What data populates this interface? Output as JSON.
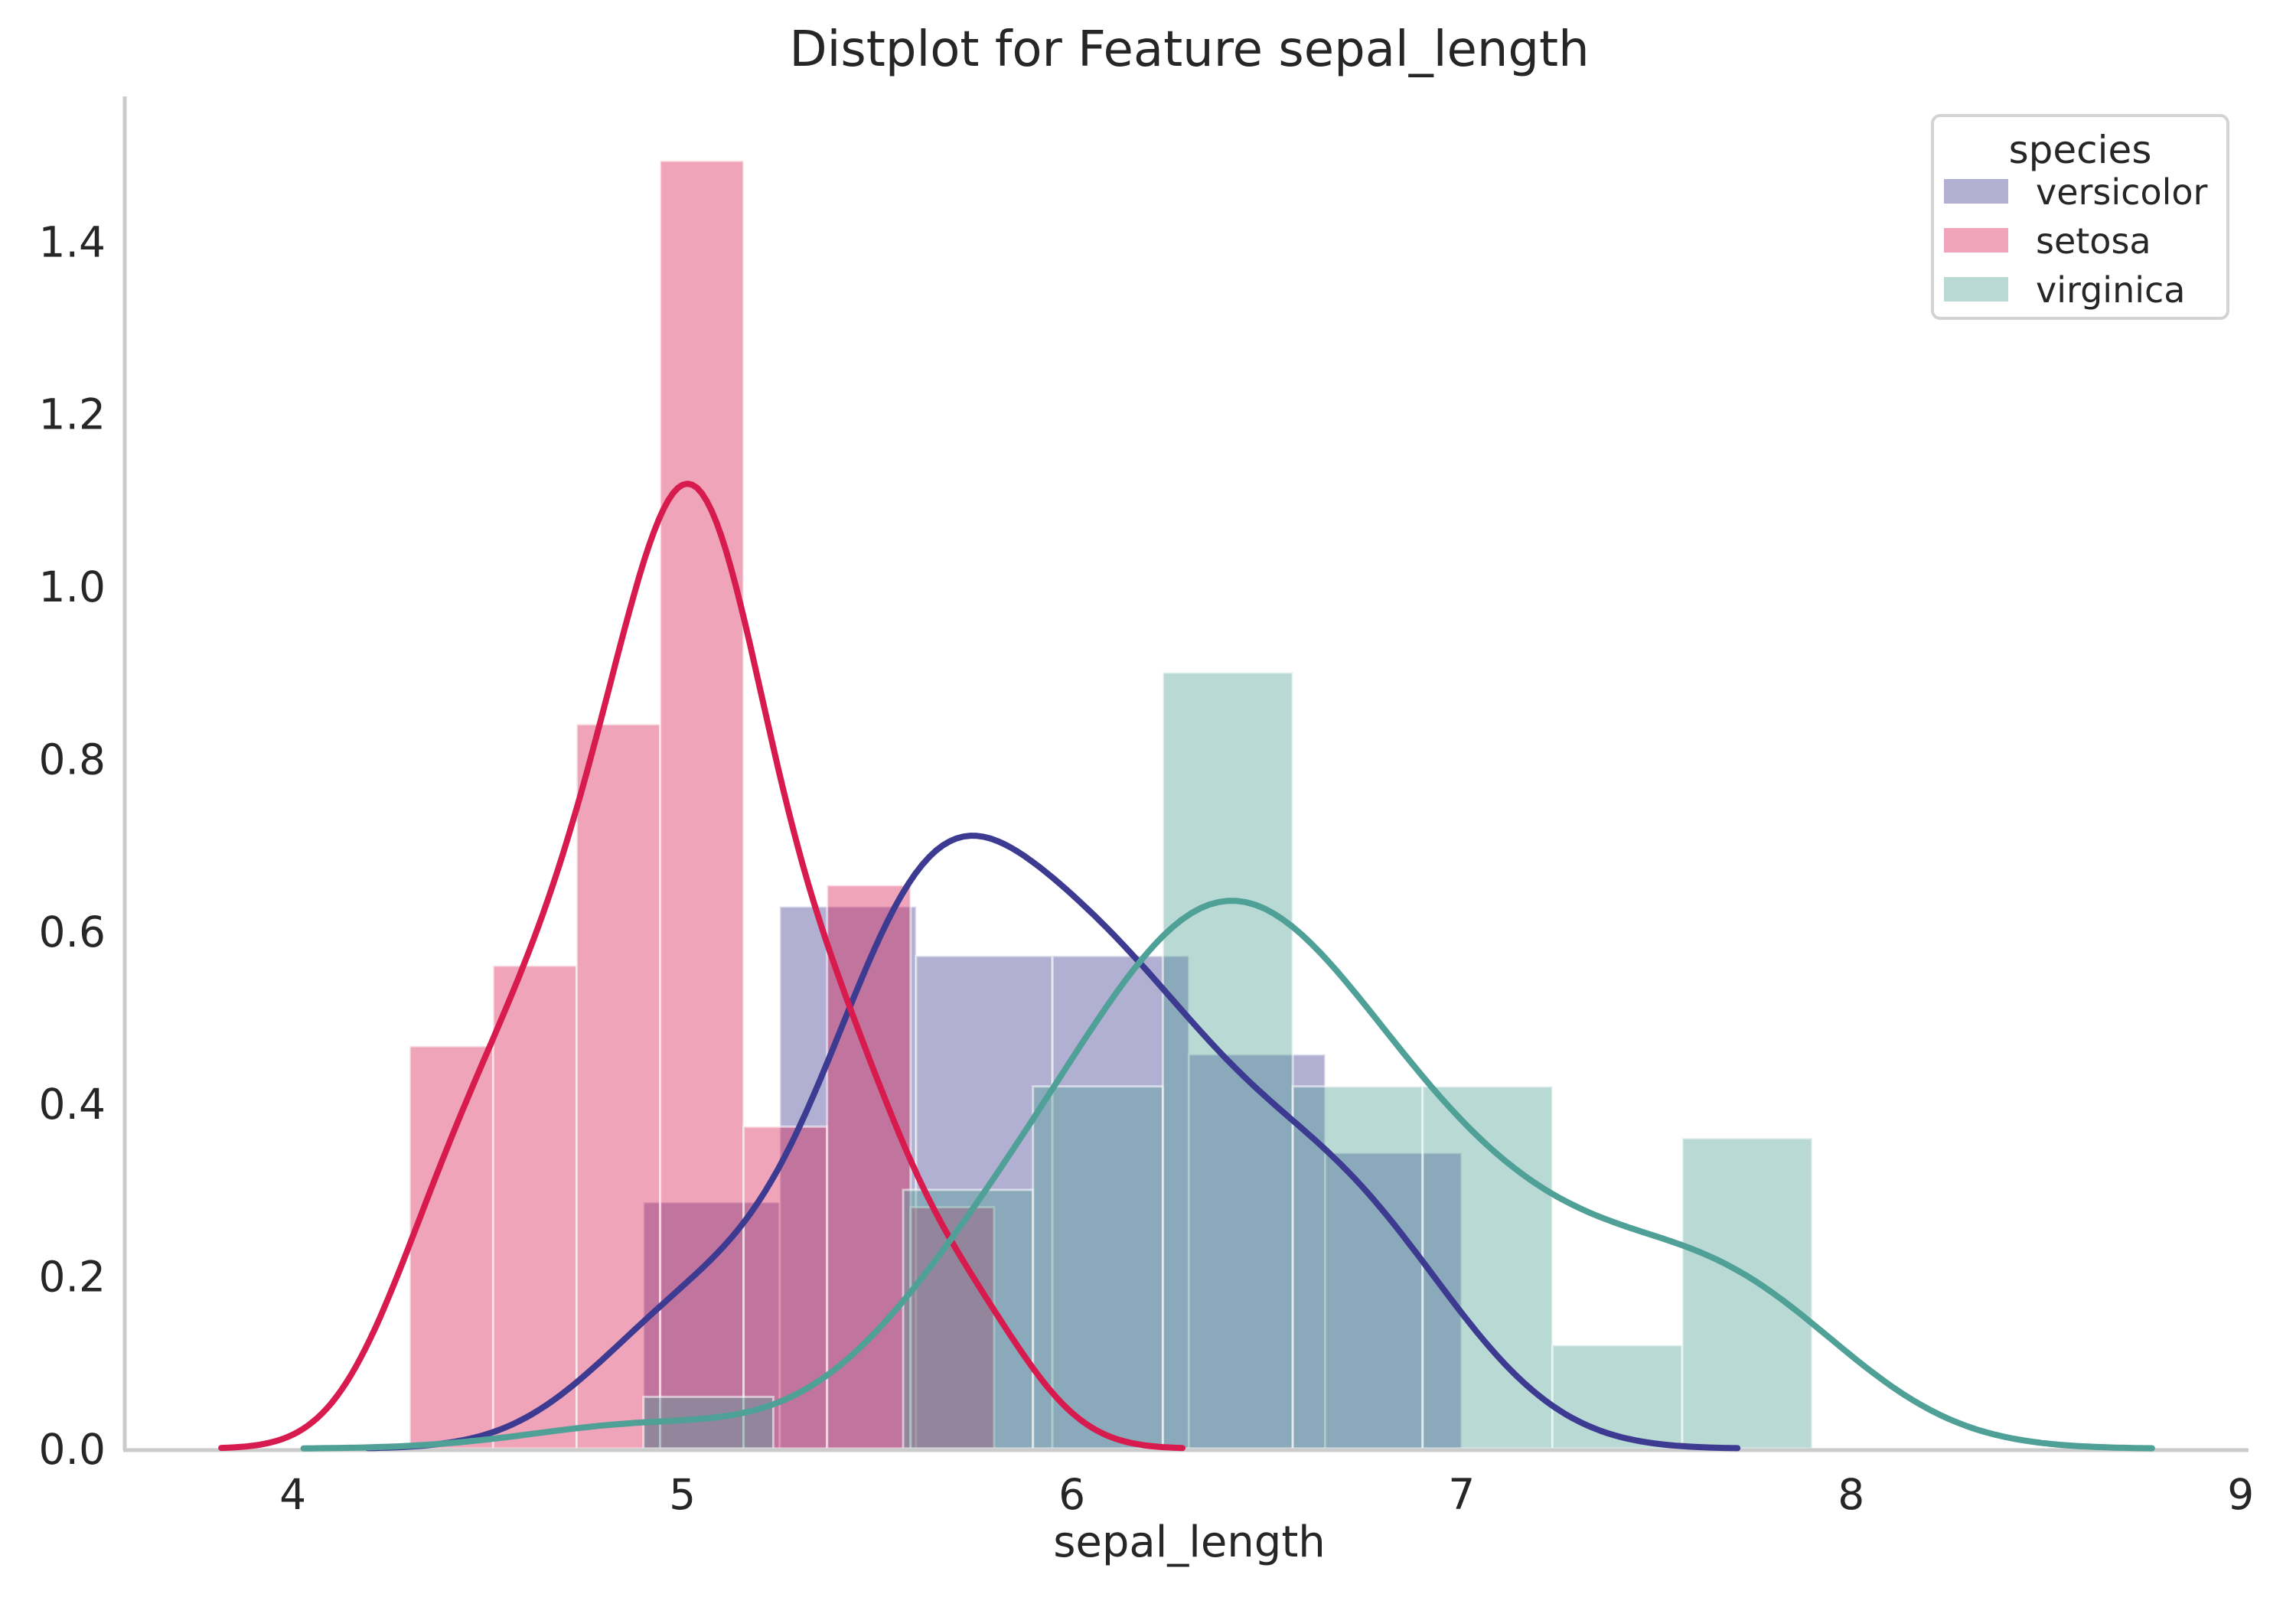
{
  "chart_data": {
    "type": "histogram+kde",
    "title": "Distplot for Feature sepal_length",
    "xlabel": "sepal_length",
    "ylabel": "",
    "legend": {
      "title": "species",
      "position": "upper right"
    },
    "axes": {
      "xlim": [
        3.5686,
        9.0202
      ],
      "ylim": [
        0,
        1.568
      ],
      "xticks": [
        4,
        5,
        6,
        7,
        8,
        9
      ],
      "yticks": [
        0.0,
        0.2,
        0.4,
        0.6,
        0.8,
        1.0,
        1.2,
        1.4
      ],
      "grid": false
    },
    "style": {
      "background": "#ffffff",
      "text_color": "#262626",
      "spine_color": "#cbcbcb",
      "bar_edge_color": "rgba(255,255,255,0.55)"
    },
    "series": [
      {
        "label": "versicolor",
        "line_color": "#3d3a91",
        "fill_color": "rgba(61,58,145,0.40)",
        "bins": {
          "edges": [
            4.9,
            5.25,
            5.6,
            5.95,
            6.3,
            6.65,
            7.0
          ],
          "density": [
            0.2857,
            0.6286,
            0.5714,
            0.5714,
            0.4571,
            0.3429
          ]
        },
        "kde": {
          "bandwidth": 0.2361,
          "cut": 3,
          "peak": {
            "x": 5.75,
            "y": 0.71
          }
        },
        "samples": [
          7.0,
          6.4,
          6.9,
          5.5,
          6.5,
          5.7,
          6.3,
          4.9,
          6.6,
          5.2,
          5.0,
          5.9,
          6.0,
          6.1,
          5.6,
          6.7,
          5.6,
          5.8,
          6.2,
          5.6,
          5.9,
          6.1,
          6.3,
          6.1,
          6.4,
          6.6,
          6.8,
          6.7,
          6.0,
          5.7,
          5.5,
          5.5,
          5.8,
          6.0,
          5.4,
          6.0,
          6.7,
          6.3,
          5.6,
          5.5,
          5.5,
          6.1,
          5.8,
          5.0,
          5.6,
          5.7,
          5.7,
          6.2,
          5.1,
          5.7
        ]
      },
      {
        "label": "setosa",
        "line_color": "#d81b4f",
        "fill_color": "rgba(216,27,79,0.40)",
        "bins": {
          "edges": [
            4.3,
            4.5143,
            4.7286,
            4.9429,
            5.1571,
            5.3714,
            5.5857,
            5.8
          ],
          "density": [
            0.4667,
            0.56,
            0.84,
            1.4933,
            0.3733,
            0.6533,
            0.28
          ]
        },
        "kde": {
          "bandwidth": 0.1612,
          "cut": 3,
          "peak": {
            "x": 5.0,
            "y": 1.12
          }
        },
        "samples": [
          5.1,
          4.9,
          4.7,
          4.6,
          5.0,
          5.4,
          4.6,
          5.0,
          4.4,
          4.9,
          5.4,
          4.8,
          4.8,
          4.3,
          5.8,
          5.7,
          5.4,
          5.1,
          5.7,
          5.1,
          5.4,
          5.1,
          4.6,
          5.1,
          4.8,
          5.0,
          5.0,
          5.2,
          5.2,
          4.7,
          4.8,
          5.4,
          5.2,
          5.5,
          4.9,
          5.0,
          5.5,
          4.9,
          4.4,
          5.1,
          5.0,
          4.5,
          4.4,
          5.0,
          5.1,
          4.8,
          5.1,
          4.6,
          5.3,
          5.0
        ]
      },
      {
        "label": "virginica",
        "line_color": "#4fa096",
        "fill_color": "rgba(79,160,150,0.40)",
        "bins": {
          "edges": [
            4.9,
            5.2333,
            5.5667,
            5.9,
            6.2333,
            6.5667,
            6.9,
            7.2333,
            7.5667,
            7.9
          ],
          "density": [
            0.06,
            0,
            0.3,
            0.42,
            0.9,
            0.42,
            0.42,
            0.12,
            0.36
          ]
        },
        "kde": {
          "bandwidth": 0.2908,
          "cut": 3,
          "peak": {
            "x": 6.41,
            "y": 0.635
          }
        },
        "samples": [
          6.3,
          5.8,
          7.1,
          6.3,
          6.5,
          7.6,
          4.9,
          7.3,
          6.7,
          7.2,
          6.5,
          6.4,
          6.8,
          5.7,
          5.8,
          6.4,
          6.5,
          7.7,
          7.7,
          6.0,
          6.9,
          5.6,
          7.7,
          6.3,
          6.7,
          7.2,
          6.2,
          6.1,
          6.4,
          7.2,
          7.4,
          7.9,
          6.4,
          6.3,
          6.1,
          7.7,
          6.3,
          6.4,
          6.0,
          6.9,
          6.7,
          6.9,
          5.8,
          6.8,
          6.7,
          6.7,
          6.3,
          6.5,
          6.2,
          5.9
        ]
      }
    ]
  }
}
